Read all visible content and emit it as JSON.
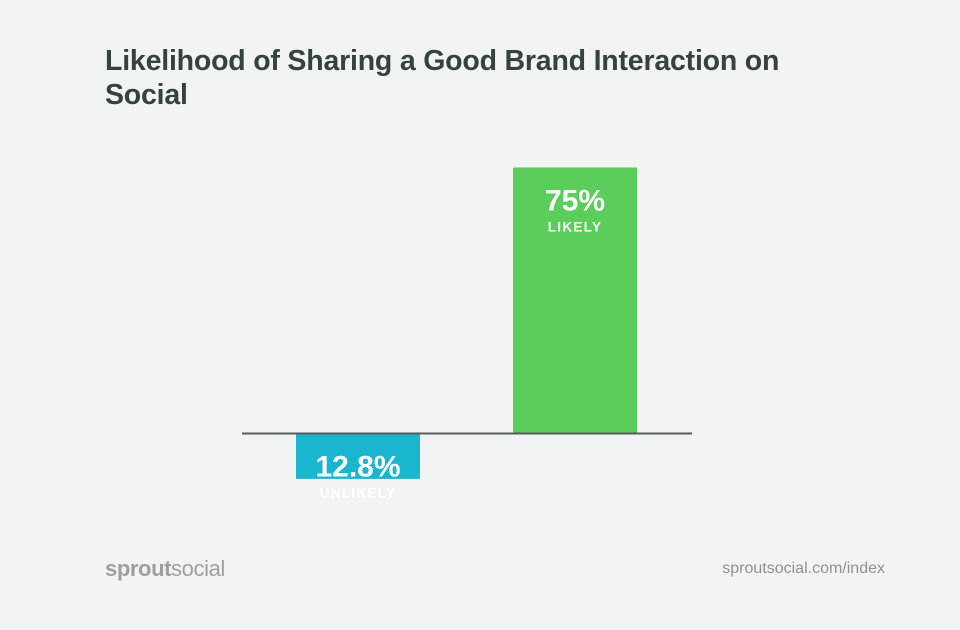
{
  "chart_data": {
    "type": "bar",
    "title": "Likelihood of Sharing a Good Brand Interaction on Social",
    "categories": [
      "Unlikely",
      "Likely"
    ],
    "series": [
      {
        "values": [
          -12.8,
          75
        ],
        "value_labels": [
          "12.8%",
          "75%"
        ],
        "category_labels": [
          "UNLIKELY",
          "LIKELY"
        ],
        "colors": [
          "#1ab6d0",
          "#5bcd5b"
        ]
      }
    ],
    "baseline": 0,
    "grid": false,
    "axis_color": "#555c5c"
  },
  "footer": {
    "brand_bold": "sprout",
    "brand_regular": "social",
    "url": "sproutsocial.com/index"
  }
}
